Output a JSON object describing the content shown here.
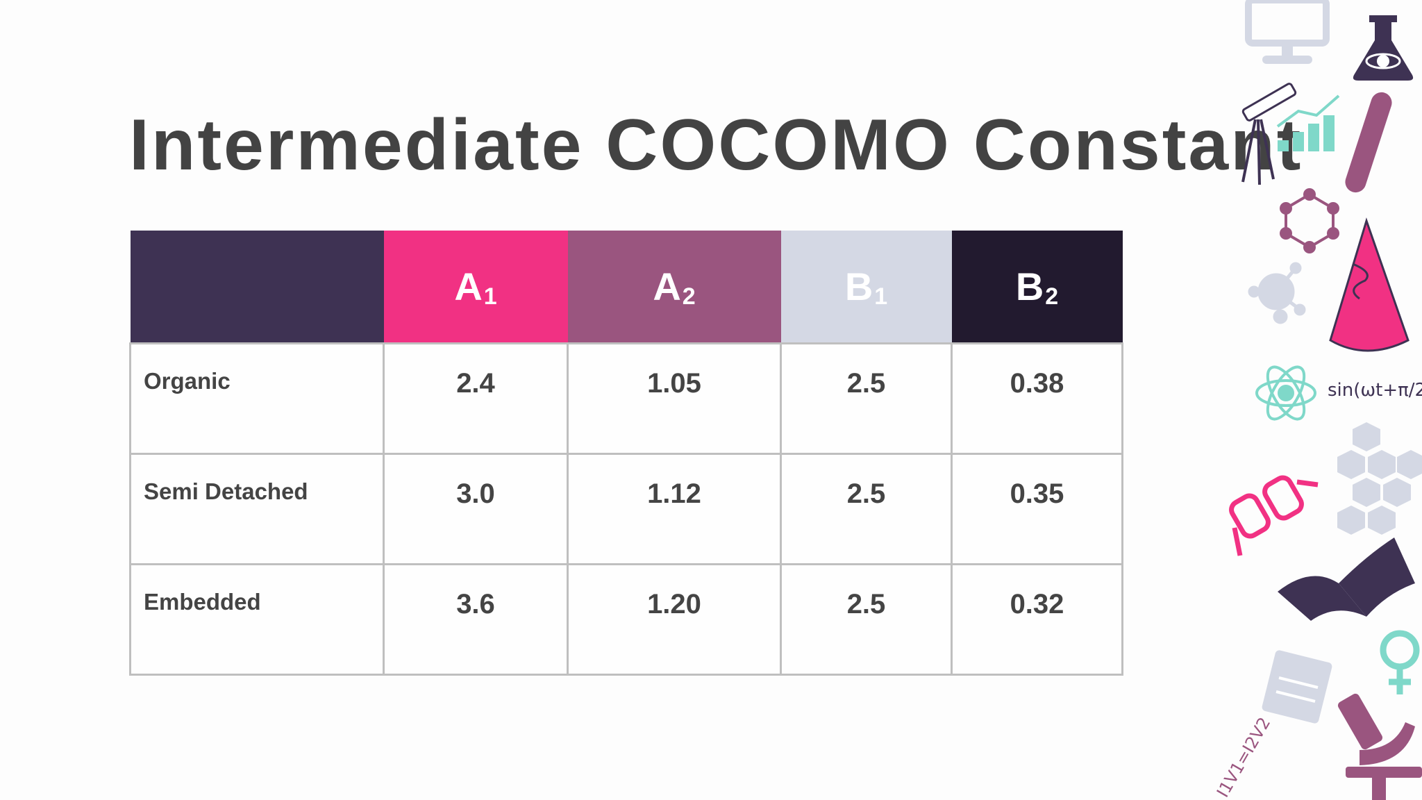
{
  "slide": {
    "title": "Intermediate COCOMO Constant"
  },
  "table": {
    "headers": [
      {
        "main": "",
        "sub": ""
      },
      {
        "main": "A",
        "sub": "1"
      },
      {
        "main": "A",
        "sub": "2"
      },
      {
        "main": "B",
        "sub": "1"
      },
      {
        "main": "B",
        "sub": "2"
      }
    ],
    "rows": [
      {
        "label": "Organic",
        "values": [
          "2.4",
          "1.05",
          "2.5",
          "0.38"
        ]
      },
      {
        "label": "Semi Detached",
        "values": [
          "3.0",
          "1.12",
          "2.5",
          "0.35"
        ]
      },
      {
        "label": "Embedded",
        "values": [
          "3.6",
          "1.20",
          "2.5",
          "0.32"
        ]
      }
    ]
  },
  "colors": {
    "header_label": "#3e3253",
    "header_a1": "#f13183",
    "header_a2": "#9a557f",
    "header_b1": "#d4d8e4",
    "header_b2": "#221a2f",
    "title": "#434343",
    "border": "#bfbfbf"
  },
  "decorations": {
    "formula_text": "sin(ωt+π/2)",
    "equation_text": "I1V1=I2V2",
    "icons": [
      "monitor-icon",
      "flask-icon",
      "telescope-icon",
      "bar-chart-icon",
      "test-tube-icon",
      "molecule-icon",
      "virus-icon",
      "cone-icon",
      "atom-icon",
      "honeycomb-icon",
      "glasses-icon",
      "book-icon",
      "female-symbol-icon",
      "notepad-icon",
      "microscope-icon"
    ]
  }
}
